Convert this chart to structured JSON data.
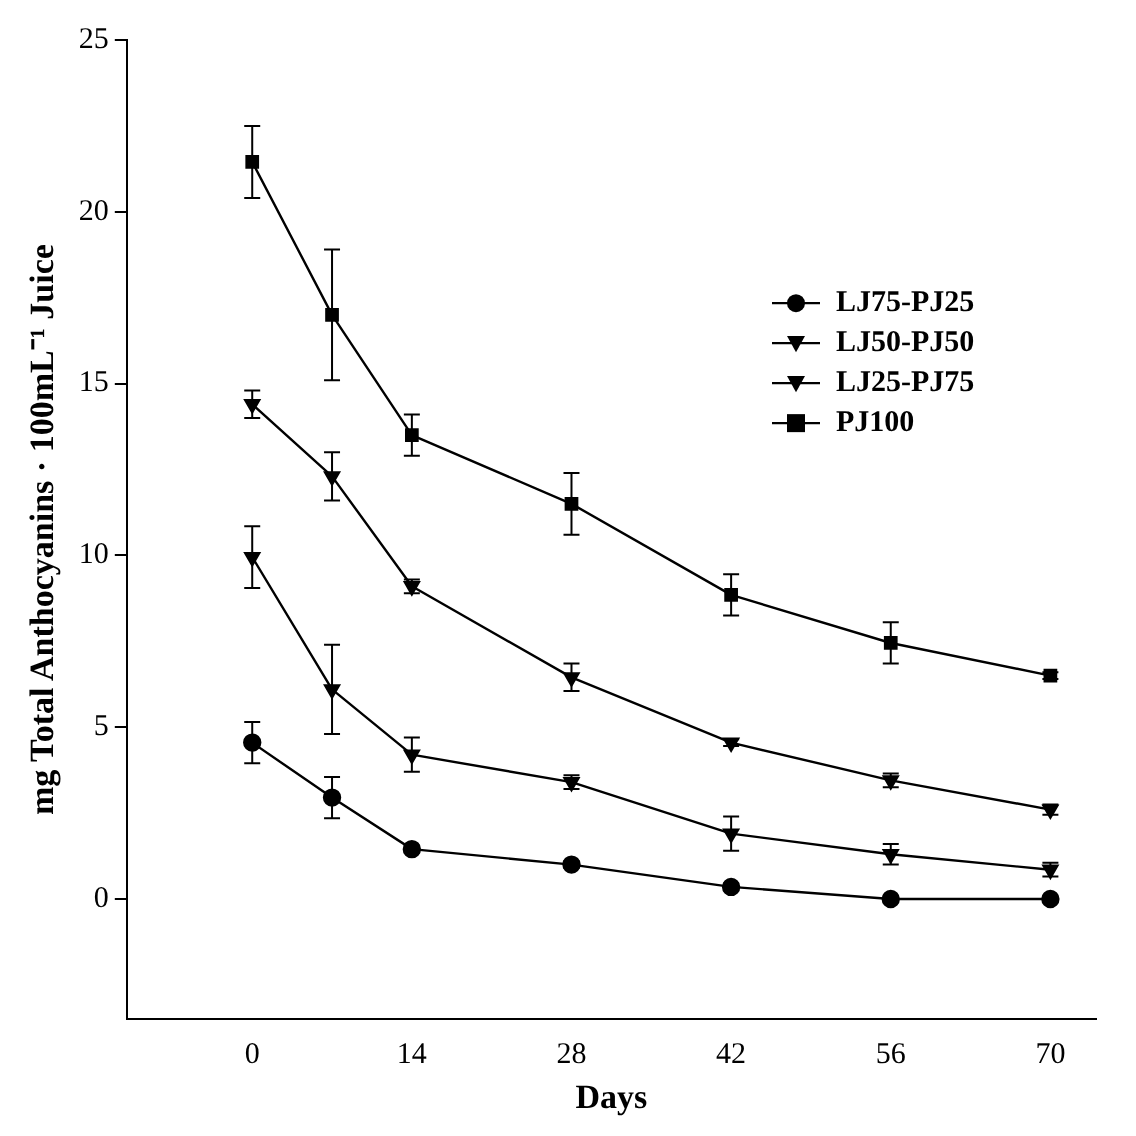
{
  "chart_data": {
    "type": "line",
    "xlabel": "Days",
    "ylabel": "mg Total Anthocyanins · 100mL⁻¹ Juice",
    "x": [
      0,
      7,
      14,
      28,
      42,
      56,
      70
    ],
    "xlim": [
      -11,
      74
    ],
    "xticks": [
      0,
      14,
      28,
      42,
      56,
      70
    ],
    "ylim": [
      -3.5,
      25
    ],
    "yticks": [
      0,
      5,
      10,
      15,
      20,
      25
    ],
    "grid": false,
    "legend": "right",
    "line_style": "solid",
    "series": [
      {
        "name": "LJ75-PJ25",
        "color": "#000000",
        "marker": "circle",
        "values": [
          4.55,
          2.95,
          1.45,
          1.0,
          0.35,
          0,
          0
        ],
        "errors": [
          0.6,
          0.6,
          0.1,
          0.1,
          0.1,
          0.05,
          0.05
        ]
      },
      {
        "name": "LJ50-PJ50",
        "color": "#000000",
        "marker": "triangle",
        "values": [
          9.95,
          6.1,
          4.2,
          3.4,
          1.9,
          1.3,
          0.85
        ],
        "errors": [
          0.9,
          1.3,
          0.5,
          0.2,
          0.5,
          0.3,
          0.2
        ]
      },
      {
        "name": "LJ25-PJ75",
        "color": "#000000",
        "marker": "triangle",
        "values": [
          14.4,
          12.3,
          9.1,
          6.45,
          4.55,
          3.45,
          2.6
        ],
        "errors": [
          0.4,
          0.7,
          0.2,
          0.4,
          0.1,
          0.2,
          0.15
        ]
      },
      {
        "name": "PJ100",
        "color": "#000000",
        "marker": "square",
        "values": [
          21.45,
          17.0,
          13.5,
          11.5,
          8.85,
          7.45,
          6.5
        ],
        "errors": [
          1.05,
          1.9,
          0.6,
          0.9,
          0.6,
          0.6,
          0.1
        ]
      }
    ]
  }
}
